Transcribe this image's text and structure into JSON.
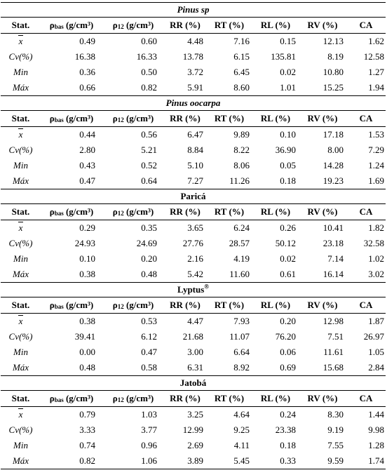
{
  "headers": {
    "stat": "Stat.",
    "rho_bas_prefix": "ρ",
    "rho_bas_sub": "bas",
    "rho_bas_unit": " (g/cm³)",
    "rho_12_prefix": "ρ",
    "rho_12_sub": "12",
    "rho_12_unit": " (g/cm³)",
    "rr": "RR (%)",
    "rt": "RT (%)",
    "rl": "RL (%)",
    "rv": "RV (%)",
    "ca": "CA"
  },
  "stat_labels": [
    "x",
    "Cv(%)",
    "Min",
    "Máx"
  ],
  "sections": [
    {
      "title": "Pinus sp",
      "italic": true,
      "rows": [
        [
          "0.49",
          "0.60",
          "4.48",
          "7.16",
          "0.15",
          "12.13",
          "1.62"
        ],
        [
          "16.38",
          "16.33",
          "13.78",
          "6.15",
          "135.81",
          "8.19",
          "12.58"
        ],
        [
          "0.36",
          "0.50",
          "3.72",
          "6.45",
          "0.02",
          "10.80",
          "1.27"
        ],
        [
          "0.66",
          "0.82",
          "5.91",
          "8.60",
          "1.01",
          "15.25",
          "1.94"
        ]
      ]
    },
    {
      "title": "Pinus oocarpa",
      "italic": true,
      "rows": [
        [
          "0.44",
          "0.56",
          "6.47",
          "9.89",
          "0.10",
          "17.18",
          "1.53"
        ],
        [
          "2.80",
          "5.21",
          "8.84",
          "8.22",
          "36.90",
          "8.00",
          "7.29"
        ],
        [
          "0.43",
          "0.52",
          "5.10",
          "8.06",
          "0.05",
          "14.28",
          "1.24"
        ],
        [
          "0.47",
          "0.64",
          "7.27",
          "11.26",
          "0.18",
          "19.23",
          "1.69"
        ]
      ]
    },
    {
      "title": "Paricá",
      "italic": false,
      "rows": [
        [
          "0.29",
          "0.35",
          "3.65",
          "6.24",
          "0.26",
          "10.41",
          "1.82"
        ],
        [
          "24.93",
          "24.69",
          "27.76",
          "28.57",
          "50.12",
          "23.18",
          "32.58"
        ],
        [
          "0.10",
          "0.20",
          "2.16",
          "4.19",
          "0.02",
          "7.14",
          "1.02"
        ],
        [
          "0.38",
          "0.48",
          "5.42",
          "11.60",
          "0.61",
          "16.14",
          "3.02"
        ]
      ]
    },
    {
      "title": "Lyptus",
      "title_sup": "®",
      "italic": false,
      "rows": [
        [
          "0.38",
          "0.53",
          "4.47",
          "7.93",
          "0.20",
          "12.98",
          "1.87"
        ],
        [
          "39.41",
          "6.12",
          "21.68",
          "11.07",
          "76.20",
          "7.51",
          "26.97"
        ],
        [
          "0.00",
          "0.47",
          "3.00",
          "6.64",
          "0.06",
          "11.61",
          "1.05"
        ],
        [
          "0.48",
          "0.58",
          "6.31",
          "8.92",
          "0.69",
          "15.68",
          "2.84"
        ]
      ]
    },
    {
      "title": "Jatobá",
      "italic": false,
      "rows": [
        [
          "0.79",
          "1.03",
          "3.25",
          "4.64",
          "0.24",
          "8.30",
          "1.44"
        ],
        [
          "3.33",
          "3.77",
          "12.99",
          "9.25",
          "23.38",
          "9.19",
          "9.98"
        ],
        [
          "0.74",
          "0.96",
          "2.69",
          "4.11",
          "0.18",
          "7.55",
          "1.28"
        ],
        [
          "0.82",
          "1.06",
          "3.89",
          "5.45",
          "0.33",
          "9.59",
          "1.74"
        ]
      ]
    }
  ]
}
